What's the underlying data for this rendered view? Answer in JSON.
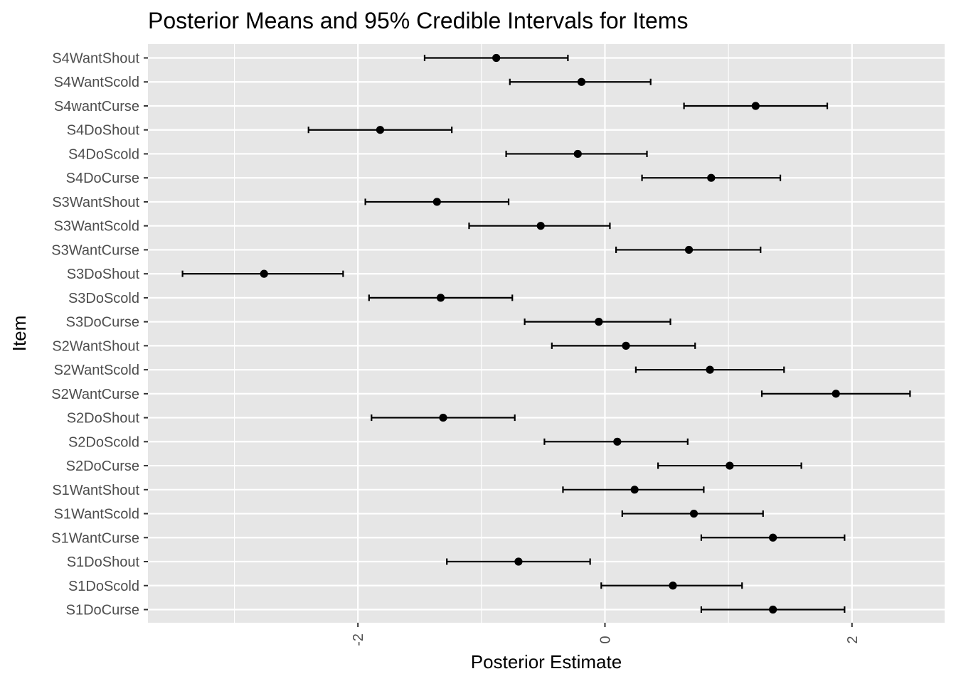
{
  "chart_data": {
    "type": "errorbar",
    "title": "Posterior Means and 95% Credible Intervals for Items",
    "xlabel": "Posterior Estimate",
    "ylabel": "Item",
    "xlim": [
      -3.7,
      2.75
    ],
    "x_ticks": [
      -2,
      0,
      2
    ],
    "x_tick_labels": [
      "-2",
      "0",
      "2"
    ],
    "x_tick_label_rotation": "vertical",
    "grid": true,
    "legend": "none",
    "panel_background": "#e6e6e6",
    "grid_color": "#ffffff",
    "point_color": "#000000",
    "categories": [
      "S4WantShout",
      "S4WantScold",
      "S4wantCurse",
      "S4DoShout",
      "S4DoScold",
      "S4DoCurse",
      "S3WantShout",
      "S3WantScold",
      "S3WantCurse",
      "S3DoShout",
      "S3DoScold",
      "S3DoCurse",
      "S2WantShout",
      "S2WantScold",
      "S2WantCurse",
      "S2DoShout",
      "S2DoScold",
      "S2DoCurse",
      "S1WantShout",
      "S1WantScold",
      "S1WantCurse",
      "S1DoShout",
      "S1DoScold",
      "S1DoCurse"
    ],
    "series": [
      {
        "mean": [
          -0.88,
          -0.19,
          1.22,
          -1.82,
          -0.22,
          0.86,
          -1.36,
          -0.52,
          0.68,
          -2.76,
          -1.33,
          -0.05,
          0.17,
          0.85,
          1.87,
          -1.31,
          0.1,
          1.01,
          0.24,
          0.72,
          1.36,
          -0.7,
          0.55,
          1.36
        ],
        "lower": [
          -1.46,
          -0.77,
          0.64,
          -2.4,
          -0.8,
          0.3,
          -1.94,
          -1.1,
          0.09,
          -3.42,
          -1.91,
          -0.65,
          -0.43,
          0.25,
          1.27,
          -1.89,
          -0.49,
          0.43,
          -0.34,
          0.14,
          0.78,
          -1.28,
          -0.03,
          0.78
        ],
        "upper": [
          -0.3,
          0.37,
          1.8,
          -1.24,
          0.34,
          1.42,
          -0.78,
          0.04,
          1.26,
          -2.12,
          -0.75,
          0.53,
          0.73,
          1.45,
          2.47,
          -0.73,
          0.67,
          1.59,
          0.8,
          1.28,
          1.94,
          -0.12,
          1.11,
          1.94
        ]
      }
    ]
  }
}
